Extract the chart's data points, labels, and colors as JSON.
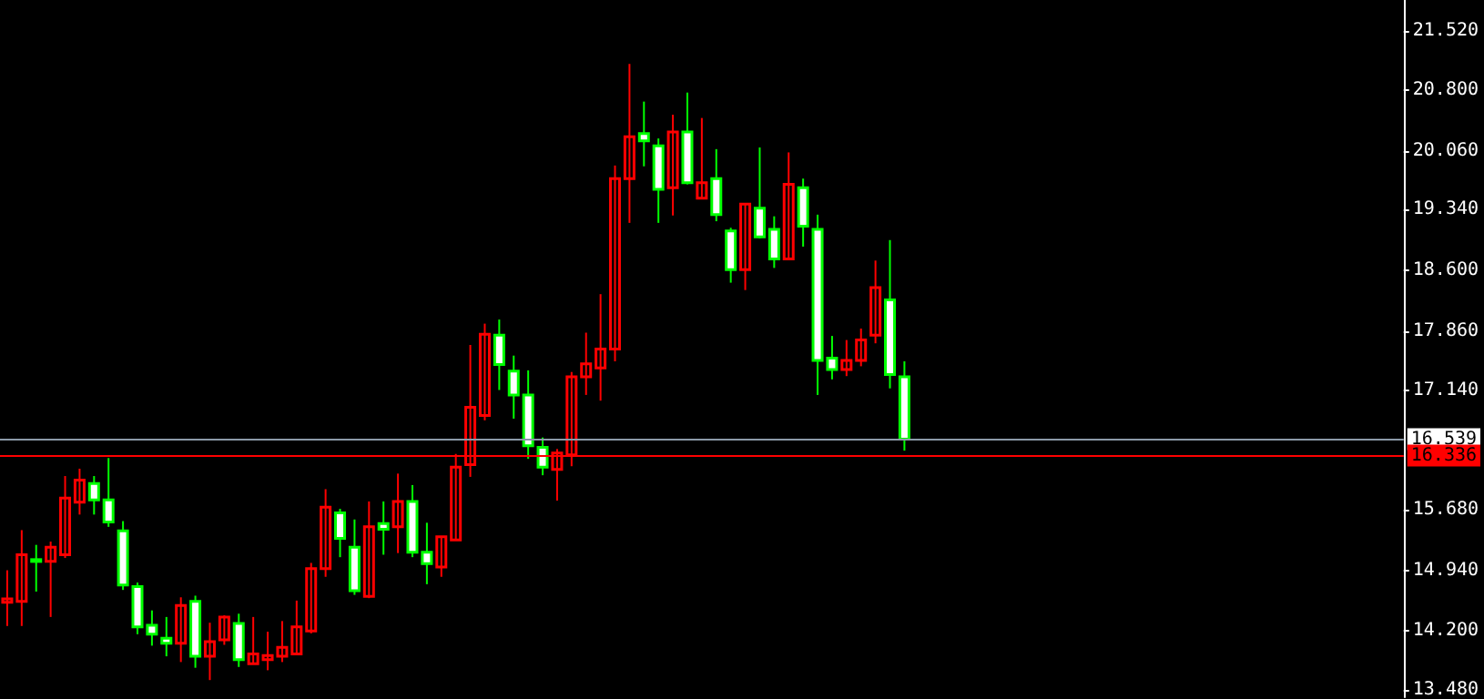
{
  "chart_data": {
    "type": "candlestick",
    "categories": [
      null,
      null,
      null,
      null,
      null,
      null,
      null,
      null,
      null,
      null,
      null,
      null,
      null,
      null,
      null,
      null,
      null,
      null,
      null,
      null,
      null,
      null,
      null,
      null,
      null,
      null,
      null,
      null,
      null,
      null,
      null,
      null,
      null,
      null,
      null,
      null,
      null,
      null,
      null,
      null,
      null,
      null,
      null,
      null,
      null,
      null,
      null,
      null,
      null,
      null,
      null,
      null,
      null,
      null,
      null,
      null,
      null,
      null,
      null,
      null,
      null,
      null,
      null,
      null,
      null,
      null,
      null,
      null,
      null,
      null,
      null,
      null,
      null,
      null,
      null,
      null,
      null,
      null,
      null,
      null,
      null,
      null,
      null,
      null,
      null,
      null,
      null,
      null,
      null,
      null,
      null,
      null,
      null,
      null,
      null,
      null,
      null
    ],
    "ohlc": [
      [
        14.55,
        14.94,
        14.26,
        14.59
      ],
      [
        14.56,
        15.43,
        14.26,
        15.13
      ],
      [
        15.07,
        15.25,
        14.68,
        15.06
      ],
      [
        15.05,
        15.29,
        14.37,
        15.22
      ],
      [
        15.13,
        16.09,
        15.09,
        15.82
      ],
      [
        15.77,
        16.18,
        15.62,
        16.04
      ],
      [
        16.0,
        16.09,
        15.62,
        15.8
      ],
      [
        15.8,
        16.31,
        15.47,
        15.53
      ],
      [
        15.42,
        15.54,
        14.7,
        14.76
      ],
      [
        14.74,
        14.79,
        14.16,
        14.25
      ],
      [
        14.27,
        14.45,
        14.02,
        14.16
      ],
      [
        14.11,
        14.37,
        13.89,
        14.05
      ],
      [
        14.05,
        14.61,
        13.82,
        14.51
      ],
      [
        14.56,
        14.63,
        13.75,
        13.89
      ],
      [
        13.89,
        14.3,
        13.6,
        14.07
      ],
      [
        14.09,
        14.39,
        14.03,
        14.37
      ],
      [
        14.29,
        14.41,
        13.76,
        13.85
      ],
      [
        13.8,
        14.37,
        13.8,
        13.92
      ],
      [
        13.85,
        14.19,
        13.72,
        13.9
      ],
      [
        13.89,
        14.32,
        13.82,
        14.0
      ],
      [
        13.92,
        14.57,
        13.92,
        14.25
      ],
      [
        14.2,
        15.03,
        14.17,
        14.96
      ],
      [
        14.96,
        15.93,
        14.86,
        15.71
      ],
      [
        15.64,
        15.69,
        15.1,
        15.33
      ],
      [
        15.22,
        15.56,
        14.64,
        14.69
      ],
      [
        14.62,
        15.78,
        14.6,
        15.47
      ],
      [
        15.51,
        15.78,
        15.13,
        15.44
      ],
      [
        15.47,
        16.12,
        15.15,
        15.78
      ],
      [
        15.78,
        15.98,
        15.1,
        15.16
      ],
      [
        15.16,
        15.52,
        14.77,
        15.02
      ],
      [
        14.98,
        15.35,
        14.86,
        15.35
      ],
      [
        15.31,
        16.36,
        15.31,
        16.2
      ],
      [
        16.23,
        17.69,
        16.08,
        16.93
      ],
      [
        16.83,
        17.95,
        16.77,
        17.82
      ],
      [
        17.81,
        18.0,
        17.14,
        17.45
      ],
      [
        17.37,
        17.56,
        16.79,
        17.08
      ],
      [
        17.08,
        17.38,
        16.3,
        16.46
      ],
      [
        16.44,
        16.56,
        16.1,
        16.2
      ],
      [
        16.17,
        16.42,
        15.79,
        16.37
      ],
      [
        16.35,
        17.36,
        16.21,
        17.3
      ],
      [
        17.3,
        17.84,
        17.08,
        17.46
      ],
      [
        17.41,
        18.31,
        17.01,
        17.64
      ],
      [
        17.64,
        19.88,
        17.49,
        19.72
      ],
      [
        19.72,
        21.12,
        19.18,
        20.23
      ],
      [
        20.27,
        20.66,
        19.87,
        20.18
      ],
      [
        20.12,
        20.21,
        19.18,
        19.59
      ],
      [
        19.61,
        20.5,
        19.27,
        20.29
      ],
      [
        20.29,
        20.77,
        19.65,
        19.67
      ],
      [
        19.48,
        20.46,
        19.47,
        19.67
      ],
      [
        19.72,
        20.08,
        19.2,
        19.28
      ],
      [
        19.08,
        19.12,
        18.45,
        18.61
      ],
      [
        18.61,
        19.41,
        18.36,
        19.41
      ],
      [
        19.36,
        20.1,
        18.99,
        19.01
      ],
      [
        19.1,
        19.26,
        18.63,
        18.74
      ],
      [
        18.74,
        20.04,
        18.74,
        19.65
      ],
      [
        19.61,
        19.72,
        18.89,
        19.14
      ],
      [
        19.1,
        19.28,
        17.08,
        17.5
      ],
      [
        17.53,
        17.8,
        17.27,
        17.39
      ],
      [
        17.39,
        17.75,
        17.31,
        17.5
      ],
      [
        17.5,
        17.89,
        17.43,
        17.75
      ],
      [
        17.81,
        18.72,
        17.71,
        18.39
      ],
      [
        18.24,
        18.97,
        17.16,
        17.33
      ],
      [
        17.3,
        17.49,
        16.4,
        16.54
      ],
      null,
      null,
      null,
      null,
      null,
      null,
      null,
      null,
      null,
      null,
      null,
      null,
      null,
      null,
      null,
      null,
      null,
      null,
      null,
      null,
      null,
      null,
      null,
      null,
      null,
      null,
      null,
      null,
      null,
      null,
      null,
      null,
      null,
      null
    ],
    "colors": [
      "#ff0000",
      "#ff0000",
      "#00ff00",
      "#ff0000",
      "#ff0000",
      "#ff0000",
      "#00ff00",
      "#00ff00",
      "#00ff00",
      "#00ff00",
      "#00ff00",
      "#00ff00",
      "#ff0000",
      "#00ff00",
      "#ff0000",
      "#ff0000",
      "#00ff00",
      "#ff0000",
      "#ff0000",
      "#ff0000",
      "#ff0000",
      "#ff0000",
      "#ff0000",
      "#00ff00",
      "#00ff00",
      "#ff0000",
      "#00ff00",
      "#ff0000",
      "#00ff00",
      "#00ff00",
      "#ff0000",
      "#ff0000",
      "#ff0000",
      "#ff0000",
      "#00ff00",
      "#00ff00",
      "#00ff00",
      "#00ff00",
      "#ff0000",
      "#ff0000",
      "#ff0000",
      "#ff0000",
      "#ff0000",
      "#ff0000",
      "#00ff00",
      "#00ff00",
      "#ff0000",
      "#00ff00",
      "#ff0000",
      "#00ff00",
      "#00ff00",
      "#ff0000",
      "#00ff00",
      "#00ff00",
      "#ff0000",
      "#00ff00",
      "#00ff00",
      "#00ff00",
      "#ff0000",
      "#ff0000",
      "#ff0000",
      "#00ff00",
      "#00ff00",
      null,
      null,
      null,
      null,
      null,
      null,
      null,
      null,
      null,
      null,
      null,
      null,
      null,
      null,
      null,
      null,
      null,
      null,
      null,
      null,
      null,
      null,
      null,
      null,
      null,
      null,
      null,
      null,
      null,
      null,
      null,
      null,
      null,
      null
    ],
    "ylim": [
      13.39,
      21.9
    ],
    "yticks": [
      {
        "value": 13.48,
        "label": "13.480"
      },
      {
        "value": 14.2,
        "label": "14.200"
      },
      {
        "value": 14.94,
        "label": "14.940"
      },
      {
        "value": 15.68,
        "label": "15.680"
      },
      {
        "value": 17.14,
        "label": "17.140"
      },
      {
        "value": 17.86,
        "label": "17.860"
      },
      {
        "value": 18.6,
        "label": "18.600"
      },
      {
        "value": 19.34,
        "label": "19.340"
      },
      {
        "value": 20.06,
        "label": "20.060"
      },
      {
        "value": 20.8,
        "label": "20.800"
      },
      {
        "value": 21.52,
        "label": "21.520"
      }
    ],
    "ref_lines": [
      {
        "axis": "y",
        "value": 16.539,
        "label": "16.539",
        "color": "#8c9aa8"
      },
      {
        "axis": "y",
        "value": 16.336,
        "label": "16.336",
        "color": "#ff0000"
      }
    ],
    "grid": false
  }
}
